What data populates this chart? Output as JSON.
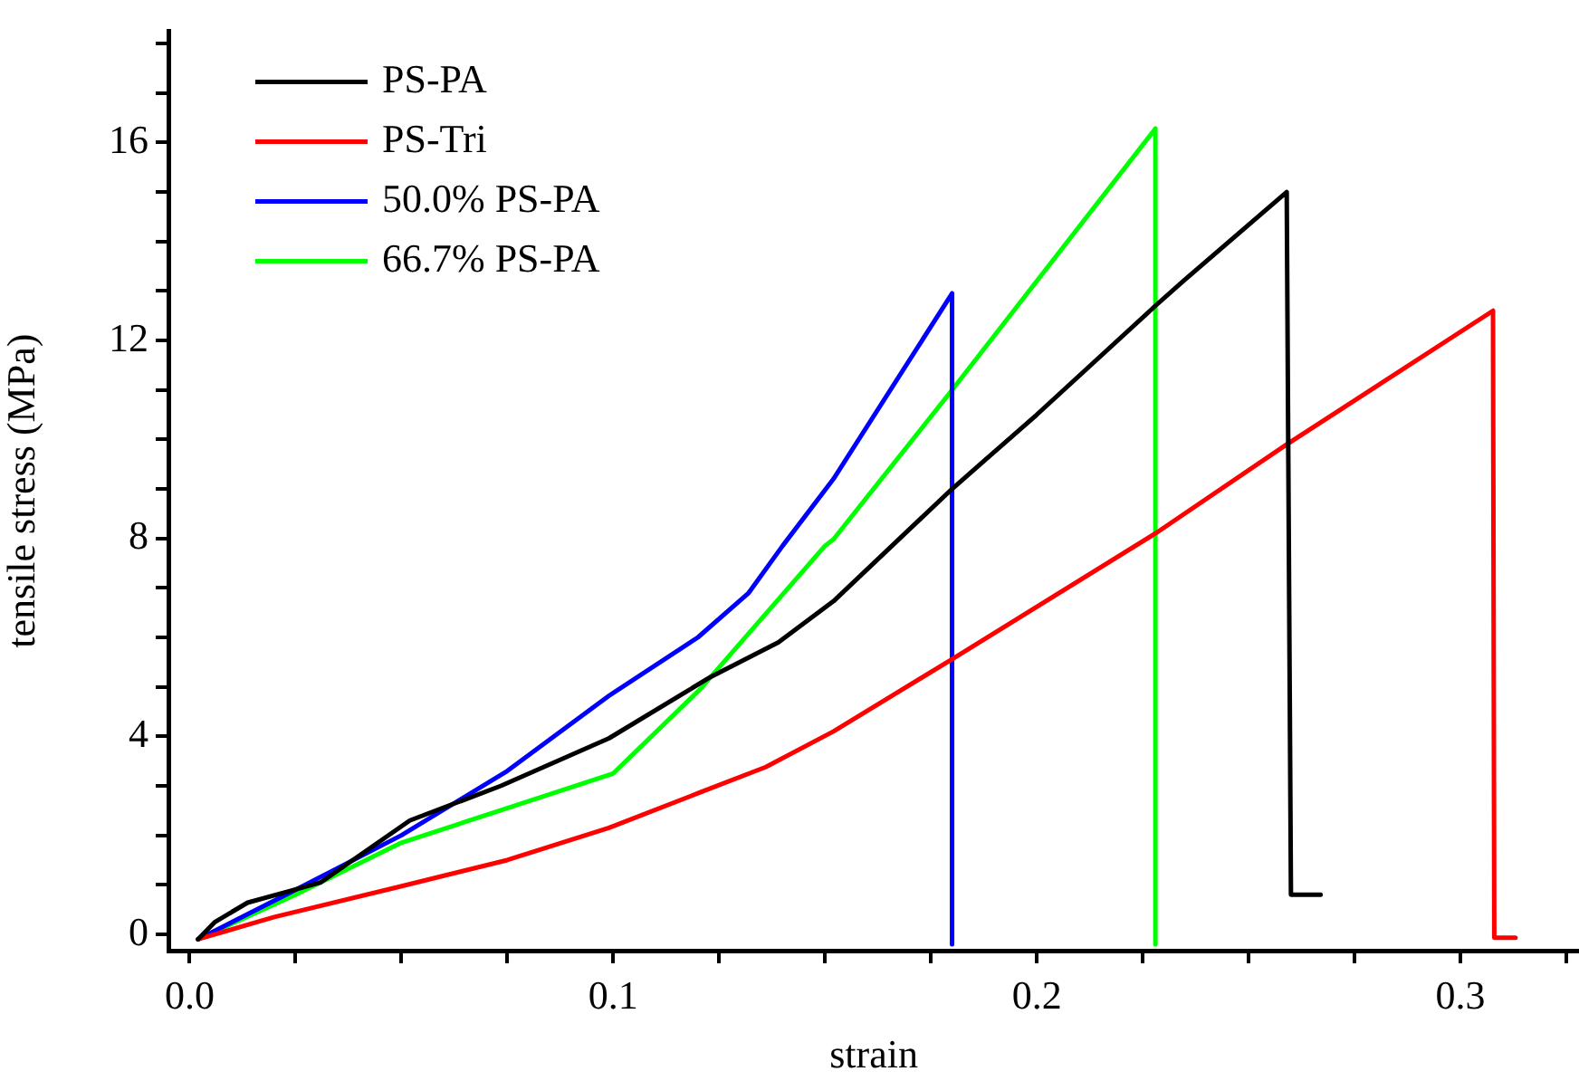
{
  "chart_data": {
    "type": "line",
    "xlabel": "strain",
    "ylabel": "tensile stress (MPa)",
    "xlim": [
      -0.005,
      0.328
    ],
    "ylim": [
      -0.33,
      18.25
    ],
    "xticks": [
      {
        "value": 0,
        "label": "0.0"
      },
      {
        "value": 0.025,
        "label": null
      },
      {
        "value": 0.05,
        "label": null
      },
      {
        "value": 0.075,
        "label": null
      },
      {
        "value": 0.1,
        "label": "0.1"
      },
      {
        "value": 0.125,
        "label": null
      },
      {
        "value": 0.15,
        "label": null
      },
      {
        "value": 0.175,
        "label": null
      },
      {
        "value": 0.2,
        "label": "0.2"
      },
      {
        "value": 0.225,
        "label": null
      },
      {
        "value": 0.25,
        "label": null
      },
      {
        "value": 0.275,
        "label": null
      },
      {
        "value": 0.3,
        "label": "0.3"
      },
      {
        "value": 0.325,
        "label": null
      }
    ],
    "yticks": [
      0,
      {
        "value": 1,
        "label": null
      },
      {
        "value": 2,
        "label": null
      },
      {
        "value": 3,
        "label": null
      },
      4,
      {
        "value": 5,
        "label": null
      },
      {
        "value": 6,
        "label": null
      },
      {
        "value": 7,
        "label": null
      },
      8,
      {
        "value": 9,
        "label": null
      },
      {
        "value": 10,
        "label": null
      },
      {
        "value": 11,
        "label": null
      },
      12,
      {
        "value": 13,
        "label": null
      },
      {
        "value": 14,
        "label": null
      },
      {
        "value": 15,
        "label": null
      },
      16,
      {
        "value": 17,
        "label": null
      },
      {
        "value": 18,
        "label": null
      }
    ],
    "grid": false,
    "legend": "top left",
    "marker": "none",
    "line_style": "solid",
    "series": [
      {
        "name": "PS-PA",
        "color": "#000000",
        "x": [
          0.002,
          0.006,
          0.0137,
          0.0235,
          0.031,
          0.052,
          0.0735,
          0.099,
          0.123,
          0.139,
          0.152,
          0.18,
          0.2,
          0.228,
          0.2346,
          0.259,
          0.26,
          0.267
        ],
        "values": [
          -0.1,
          0.25,
          0.64,
          0.87,
          1.05,
          2.3,
          3.0,
          3.96,
          5.2,
          5.9,
          6.73,
          9.0,
          10.5,
          12.7,
          13.2,
          15.0,
          0.8,
          0.8
        ]
      },
      {
        "name": "PS-Tri",
        "color": "#ff0000",
        "x": [
          0.002,
          0.02,
          0.049,
          0.075,
          0.099,
          0.12,
          0.136,
          0.152,
          0.18,
          0.228,
          0.259,
          0.3077,
          0.308,
          0.313
        ],
        "values": [
          -0.1,
          0.35,
          0.95,
          1.5,
          2.15,
          2.85,
          3.38,
          4.1,
          5.56,
          8.1,
          9.9,
          12.6,
          -0.07,
          -0.07
        ]
      },
      {
        "name": "50.0% PS-PA",
        "color": "#0000ff",
        "x": [
          0.002,
          0.0235,
          0.05,
          0.075,
          0.099,
          0.12,
          0.132,
          0.14,
          0.152,
          0.18,
          0.18
        ],
        "values": [
          -0.1,
          0.83,
          2.0,
          3.3,
          4.82,
          6.0,
          6.9,
          7.85,
          9.2,
          12.95,
          -0.2
        ]
      },
      {
        "name": "66.7% PS-PA",
        "color": "#00ff00",
        "x": [
          0.002,
          0.025,
          0.05,
          0.075,
          0.1,
          0.1205,
          0.15,
          0.152,
          0.18,
          0.228,
          0.228
        ],
        "values": [
          -0.1,
          0.8,
          1.85,
          2.55,
          3.25,
          4.95,
          7.85,
          7.98,
          11.0,
          16.28,
          -0.2
        ]
      }
    ]
  }
}
